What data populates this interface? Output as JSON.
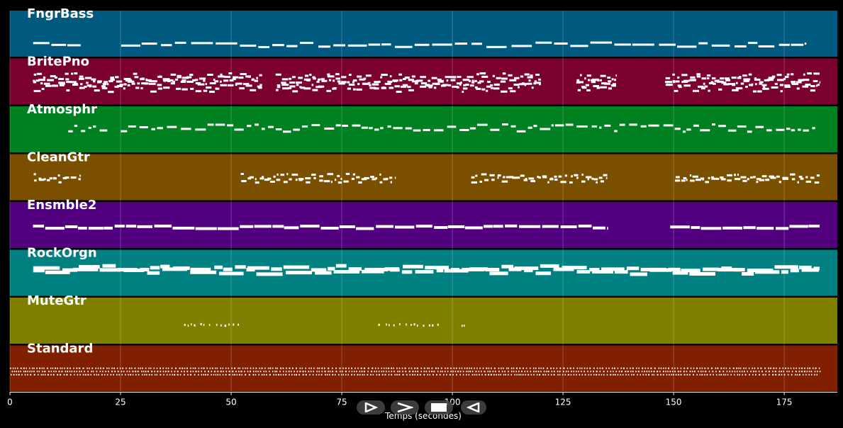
{
  "tracks": [
    {
      "name": "FngrBass",
      "color": "#005a80",
      "pattern": "bass"
    },
    {
      "name": "BritePno",
      "color": "#7a0030",
      "pattern": "piano"
    },
    {
      "name": "Atmosphr",
      "color": "#008020",
      "pattern": "pad"
    },
    {
      "name": "CleanGtr",
      "color": "#7a5000",
      "pattern": "guitar"
    },
    {
      "name": "Ensmble2",
      "color": "#520080",
      "pattern": "ensemble"
    },
    {
      "name": "RockOrgn",
      "color": "#008080",
      "pattern": "organ"
    },
    {
      "name": "MuteGtr",
      "color": "#808000",
      "pattern": "mute"
    },
    {
      "name": "Standard",
      "color": "#802000",
      "pattern": "drums"
    }
  ],
  "axis": {
    "ticks": [
      "0",
      "25",
      "50",
      "75",
      "100",
      "125",
      "150",
      "175"
    ],
    "tick_values": [
      0,
      25,
      50,
      75,
      100,
      125,
      150,
      175
    ],
    "x_min": 0,
    "x_max": 187,
    "xlabel": "Temps (secondes)"
  },
  "controls": [
    {
      "name": "play-button",
      "icon": "play-outline-icon"
    },
    {
      "name": "forward-button",
      "icon": "chevron-right-icon"
    },
    {
      "name": "stop-button",
      "icon": "stop-icon"
    },
    {
      "name": "rewind-button",
      "icon": "play-left-icon"
    }
  ],
  "colors": {
    "background": "#000000",
    "notes": "#ffffff",
    "grid": "#ffffff"
  }
}
